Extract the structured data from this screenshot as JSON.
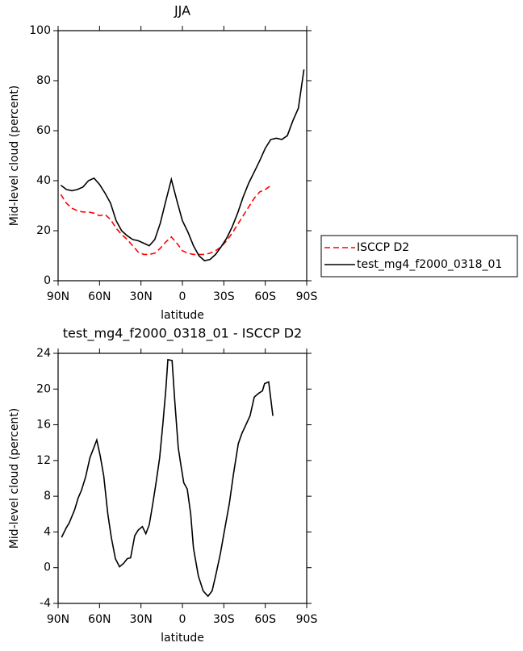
{
  "chart_data": [
    {
      "type": "line",
      "title": "JJA",
      "xlabel": "latitude",
      "ylabel": "Mid-level cloud (percent)",
      "x": [
        88,
        84,
        80,
        76,
        72,
        68,
        64,
        60,
        56,
        52,
        48,
        44,
        40,
        36,
        32,
        28,
        24,
        20,
        16,
        12,
        8,
        4,
        0,
        -4,
        -8,
        -12,
        -16,
        -20,
        -24,
        -28,
        -32,
        -36,
        -40,
        -44,
        -48,
        -52,
        -56,
        -60,
        -64,
        -68,
        -72,
        -76,
        -80,
        -84,
        -88
      ],
      "series": [
        {
          "name": "ISCCP D2",
          "color": "#ff0000",
          "dashed": true,
          "values": [
            34.5,
            31,
            29,
            28,
            27.5,
            27.5,
            27,
            26,
            26.5,
            24.5,
            21,
            18.5,
            16.5,
            14,
            11.5,
            10.5,
            10.5,
            11,
            13,
            15.5,
            17.5,
            15,
            12,
            11,
            10.5,
            10.5,
            10.5,
            11,
            12,
            13.5,
            16,
            19,
            22.5,
            26,
            29.5,
            33,
            35.5,
            36.5,
            38,
            null,
            null,
            null,
            null,
            null,
            null
          ]
        },
        {
          "name": "test_mg4_f2000_0318_01",
          "color": "#000000",
          "dashed": false,
          "values": [
            38.2,
            36.5,
            36,
            36.5,
            37.5,
            40,
            41,
            38.5,
            35,
            31,
            24,
            20,
            18,
            16.5,
            16,
            15,
            14,
            16.5,
            23,
            32,
            40.5,
            32,
            24,
            19.5,
            14,
            10,
            8,
            8.5,
            10.5,
            13.5,
            17,
            21.5,
            27,
            33.5,
            39,
            43.5,
            48,
            53,
            56.5,
            57,
            56.5,
            58,
            64,
            69,
            84.5
          ]
        }
      ],
      "xlim": [
        90,
        -90
      ],
      "xticks": [
        {
          "value": 90,
          "label": "90N"
        },
        {
          "value": 60,
          "label": "60N"
        },
        {
          "value": 30,
          "label": "30N"
        },
        0,
        {
          "value": -30,
          "label": "30S"
        },
        {
          "value": -60,
          "label": "60S"
        },
        {
          "value": -90,
          "label": "90S"
        }
      ],
      "ylim": [
        0,
        100
      ],
      "yticks": [
        0,
        20,
        40,
        60,
        80,
        100
      ],
      "legend": "outside right"
    },
    {
      "type": "line",
      "title": "test_mg4_f2000_0318_01 - ISCCP D2",
      "xlabel": "latitude",
      "ylabel": "Mid-level cloud (percent)",
      "x": [
        87.5,
        84,
        82,
        78,
        75.5,
        73,
        70,
        67,
        64,
        62,
        59.5,
        57,
        54,
        51.5,
        48.5,
        45.5,
        42.5,
        40,
        37.5,
        34.5,
        32,
        29,
        26.5,
        24,
        21.5,
        19,
        16.5,
        14,
        12,
        10.5,
        7.5,
        5.5,
        3,
        1,
        -1,
        -3.5,
        -6,
        -8,
        -11.5,
        -15,
        -18.5,
        -21.5,
        -24.5,
        -27.5,
        -30.5,
        -34,
        -37,
        -40.5,
        -43,
        -46,
        -49,
        -52,
        -55,
        -58,
        -59.5,
        -62.5,
        -65.5
      ],
      "color": "#000000",
      "values": [
        3.4,
        4.5,
        5,
        6.5,
        7.8,
        8.7,
        10.2,
        12.3,
        13.5,
        14.3,
        12.5,
        10.3,
        6,
        3.4,
        1,
        0.1,
        0.5,
        1,
        1.1,
        3.6,
        4.2,
        4.6,
        3.8,
        4.8,
        7.1,
        9.6,
        12.3,
        16.3,
        20,
        23.3,
        23.2,
        18.6,
        13.4,
        11.4,
        9.5,
        8.8,
        6,
        2.2,
        -0.9,
        -2.6,
        -3.2,
        -2.6,
        -0.6,
        1.6,
        4.2,
        7.2,
        10.5,
        13.9,
        15,
        16,
        17,
        19.1,
        19.5,
        19.8,
        20.6,
        20.8,
        17
      ],
      "xlim": [
        90,
        -90
      ],
      "xticks": [
        {
          "value": 90,
          "label": "90N"
        },
        {
          "value": 60,
          "label": "60N"
        },
        {
          "value": 30,
          "label": "30N"
        },
        0,
        {
          "value": -30,
          "label": "30S"
        },
        {
          "value": -60,
          "label": "60S"
        },
        {
          "value": -90,
          "label": "90S"
        }
      ],
      "ylim": [
        -4,
        24
      ],
      "yticks": [
        -4,
        0,
        4,
        8,
        12,
        16,
        20,
        24
      ]
    }
  ]
}
